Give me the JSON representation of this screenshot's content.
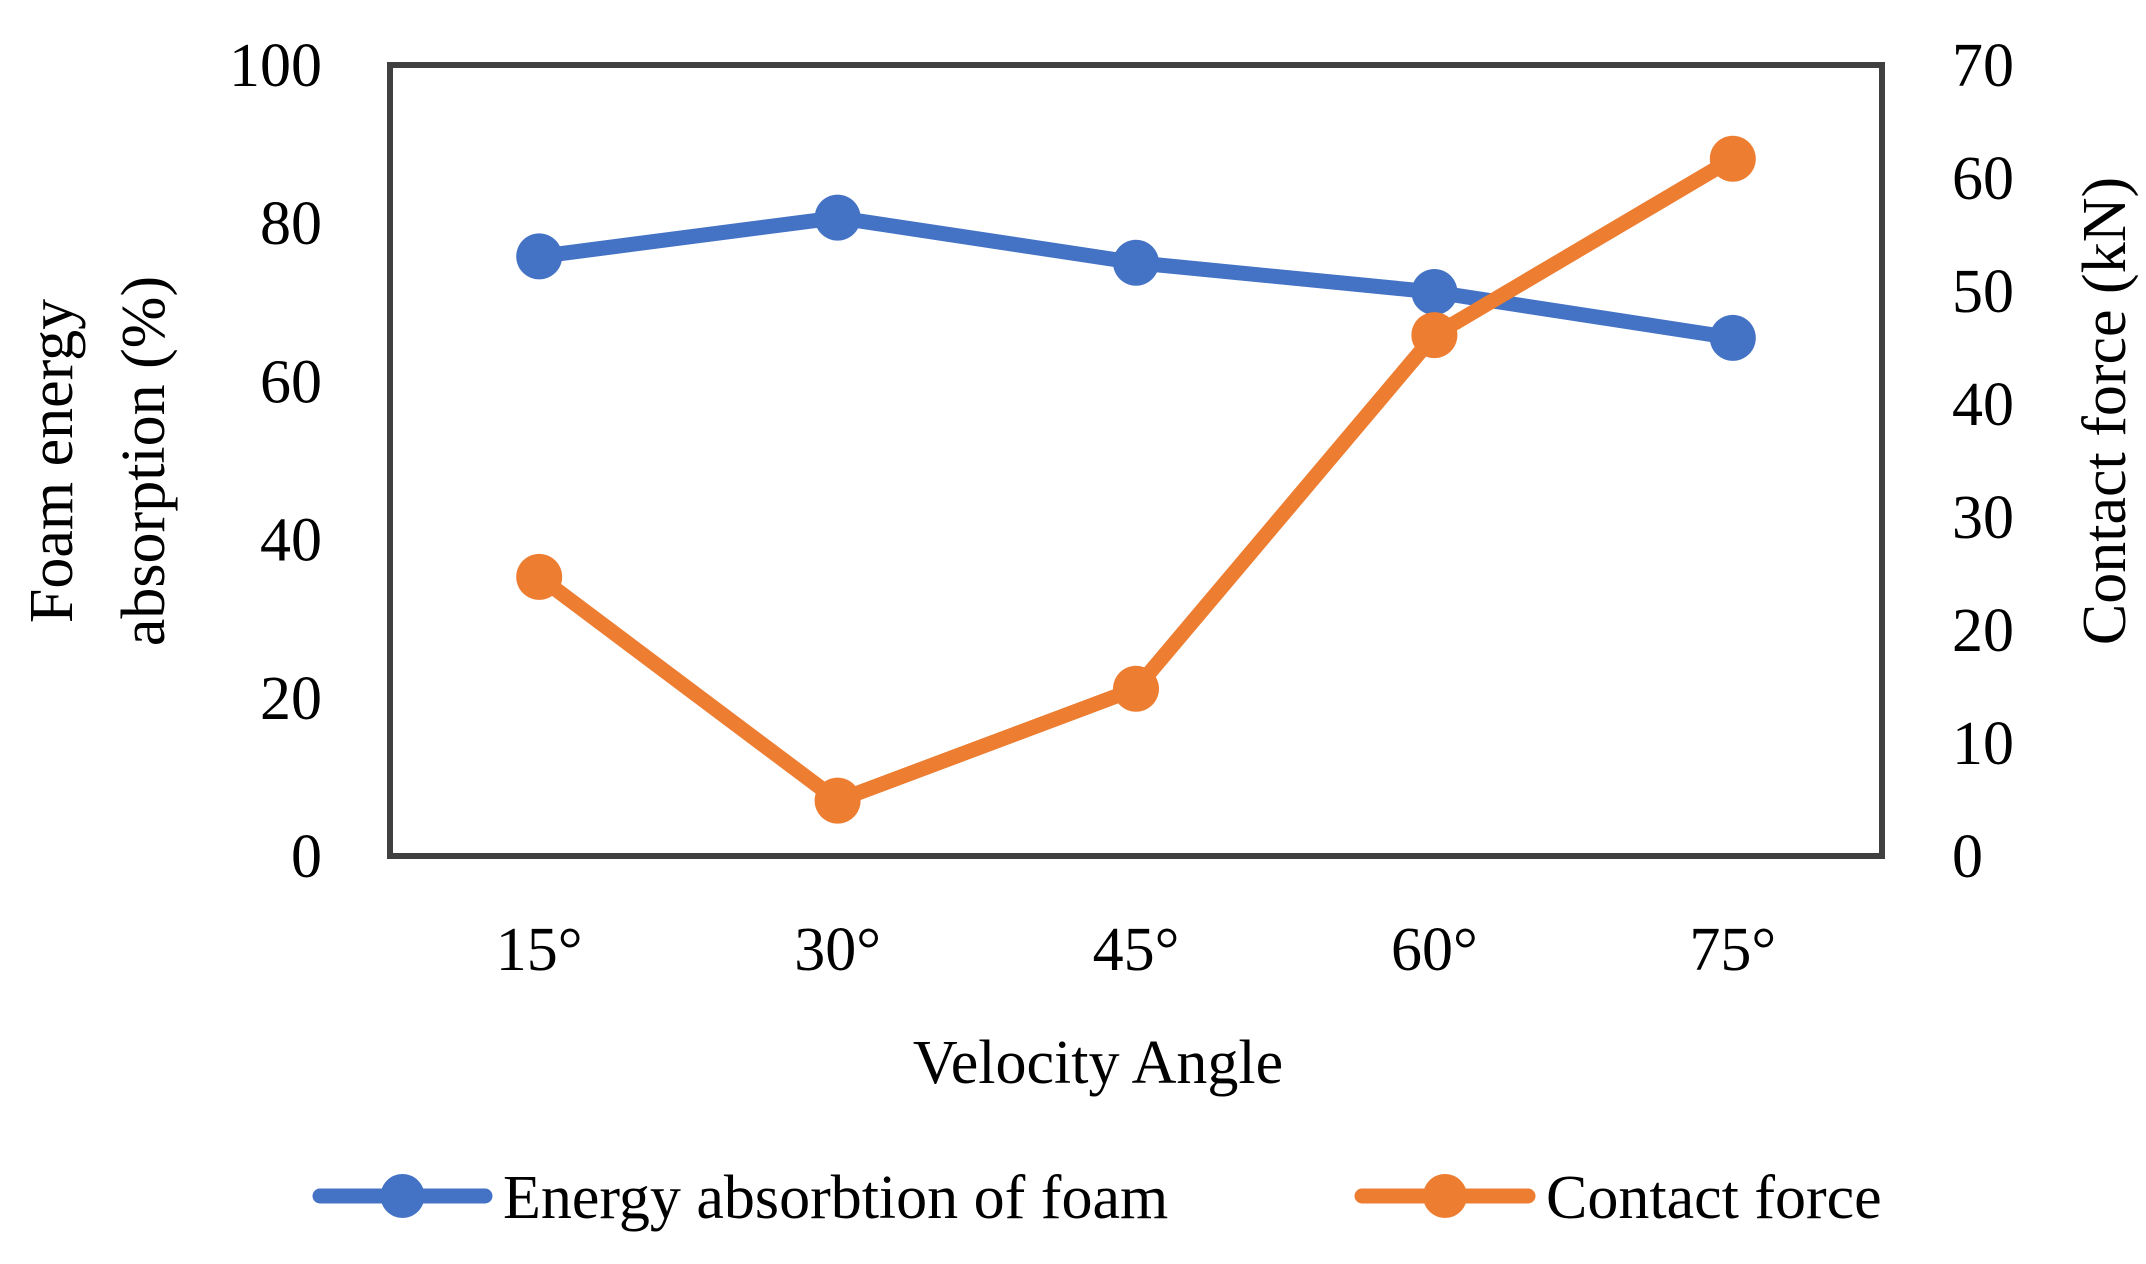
{
  "chart_data": {
    "type": "line",
    "title": "",
    "xlabel": "Velocity Angle",
    "ylabel": "Foam energy absorption (%)",
    "ylabel_lines": [
      "Foam energy",
      "absorption (%)"
    ],
    "y2label": "Contact force (kN)",
    "categories": [
      "15°",
      "30°",
      "45°",
      "60°",
      "75°"
    ],
    "ylim": [
      0,
      100
    ],
    "y2lim": [
      0,
      70
    ],
    "yticks": [
      "0",
      "20",
      "40",
      "60",
      "80",
      "100"
    ],
    "y2ticks": [
      "0",
      "10",
      "20",
      "30",
      "40",
      "50",
      "60",
      "70"
    ],
    "grid": false,
    "legend_position": "bottom",
    "series": [
      {
        "name": "Energy absorbtion of foam",
        "axis": "left",
        "color": "#4472C4",
        "values": [
          75.8,
          80.7,
          75.0,
          71.3,
          65.5
        ]
      },
      {
        "name": "Contact force",
        "axis": "right",
        "color": "#ED7D31",
        "values": [
          24.7,
          4.9,
          14.8,
          46.1,
          61.7
        ]
      }
    ]
  }
}
